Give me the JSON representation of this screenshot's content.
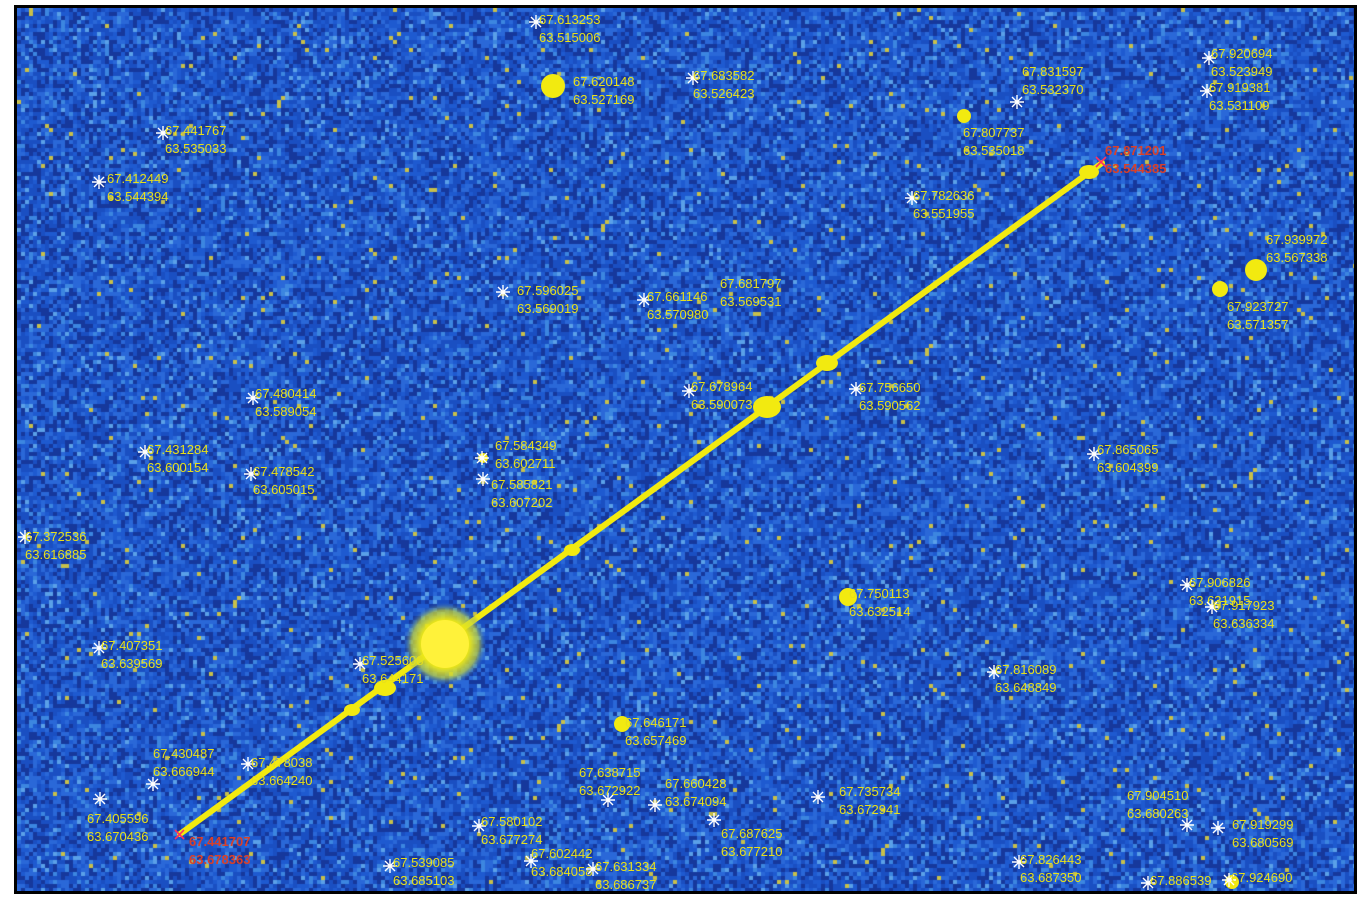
{
  "image": {
    "colors": {
      "background": "#1a56c8",
      "streak": "#f2ea10",
      "label": "#e8e01a",
      "endpoint_label": "#d8402a",
      "marker": "#ffffff"
    }
  },
  "streak_endpoints": [
    {
      "ra": "67.871201",
      "dec": "63.544385"
    },
    {
      "ra": "67.441707",
      "dec": "63.678363"
    }
  ],
  "stars": [
    {
      "ra": "67.613253",
      "dec": "63.515006"
    },
    {
      "ra": "67.620148",
      "dec": "63.527169"
    },
    {
      "ra": "67.683582",
      "dec": "63.526423"
    },
    {
      "ra": "67.831597",
      "dec": "63.532370"
    },
    {
      "ra": "67.920694",
      "dec": "63.523949"
    },
    {
      "ra": "67.919381",
      "dec": "63.531109"
    },
    {
      "ra": "67.441767",
      "dec": "63.535033"
    },
    {
      "ra": "67.807737",
      "dec": "63.535018"
    },
    {
      "ra": "67.412449",
      "dec": "63.544394"
    },
    {
      "ra": "67.782636",
      "dec": "63.551955"
    },
    {
      "ra": "67.939972",
      "dec": "63.567338"
    },
    {
      "ra": "67.596025",
      "dec": "63.569019"
    },
    {
      "ra": "67.661146",
      "dec": "63.570980"
    },
    {
      "ra": "67.681797",
      "dec": "63.569531"
    },
    {
      "ra": "67.923727",
      "dec": "63.571357"
    },
    {
      "ra": "67.480414",
      "dec": "63.589054"
    },
    {
      "ra": "67.678964",
      "dec": "63.590073"
    },
    {
      "ra": "67.756650",
      "dec": "63.590562"
    },
    {
      "ra": "67.431284",
      "dec": "63.600154"
    },
    {
      "ra": "67.584349",
      "dec": "63.602711"
    },
    {
      "ra": "67.865065",
      "dec": "63.604399"
    },
    {
      "ra": "67.478542",
      "dec": "63.605015"
    },
    {
      "ra": "67.585821",
      "dec": "63.607202"
    },
    {
      "ra": "67.372536",
      "dec": "63.616885"
    },
    {
      "ra": "67.906826",
      "dec": "63.631915"
    },
    {
      "ra": "67.750113",
      "dec": "63.632514"
    },
    {
      "ra": "67.917923",
      "dec": "63.636334"
    },
    {
      "ra": "67.407351",
      "dec": "63.639569"
    },
    {
      "ra": "67.525608",
      "dec": "63.644171"
    },
    {
      "ra": "67.816089",
      "dec": "63.648849"
    },
    {
      "ra": "67.646171",
      "dec": "63.657469"
    },
    {
      "ra": "67.430487",
      "dec": "63.666944"
    },
    {
      "ra": "67.478038",
      "dec": "63.664240"
    },
    {
      "ra": "67.638715",
      "dec": "63.672922"
    },
    {
      "ra": "67.660428",
      "dec": "63.674094"
    },
    {
      "ra": "67.735734",
      "dec": "63.672941"
    },
    {
      "ra": "67.405596",
      "dec": "63.670436"
    },
    {
      "ra": "67.580102",
      "dec": "63.677274"
    },
    {
      "ra": "67.687625",
      "dec": "63.677210"
    },
    {
      "ra": "67.904510",
      "dec": "63.680263"
    },
    {
      "ra": "67.919299",
      "dec": "63.680569"
    },
    {
      "ra": "67.602442",
      "dec": "63.684058"
    },
    {
      "ra": "67.539085",
      "dec": "63.685103"
    },
    {
      "ra": "67.631334",
      "dec": "63.686737"
    },
    {
      "ra": "67.826443",
      "dec": "63.687350"
    },
    {
      "ra": "67.886539",
      "dec": "63.692522"
    },
    {
      "ra": "67.924690",
      "dec": "63.681835"
    }
  ]
}
